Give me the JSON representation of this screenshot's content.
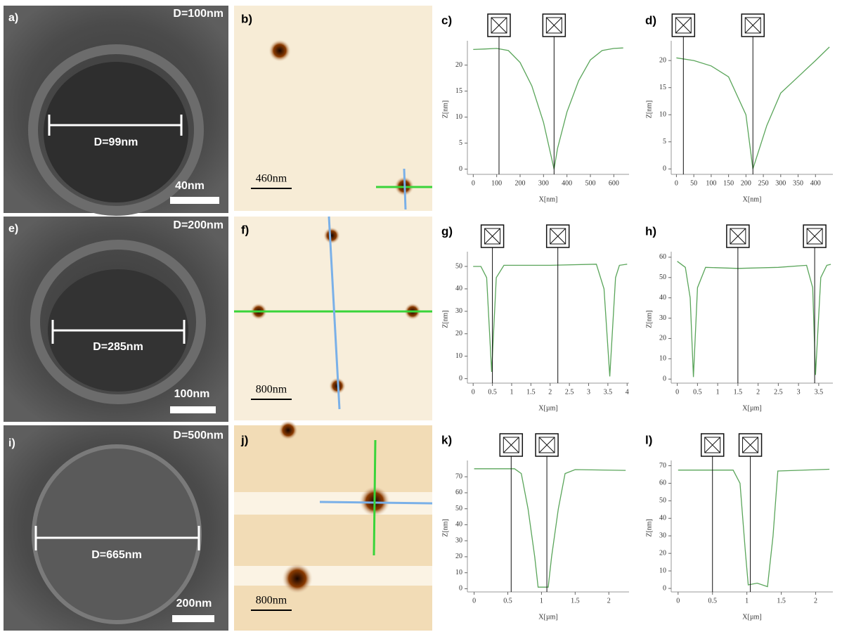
{
  "sem_panels": [
    {
      "label": "a)",
      "diameter": "D=100nm",
      "measured": "D=99nm",
      "scale": "40nm"
    },
    {
      "label": "e)",
      "diameter": "D=200nm",
      "measured": "D=285nm",
      "scale": "100nm"
    },
    {
      "label": "i)",
      "diameter": "D=500nm",
      "measured": "D=665nm",
      "scale": "200nm"
    }
  ],
  "afm_panels": [
    {
      "label": "b)",
      "scale": "460nm"
    },
    {
      "label": "f)",
      "scale": "800nm"
    },
    {
      "label": "j)",
      "scale": "800nm"
    }
  ],
  "chart_data": [
    {
      "type": "line",
      "label": "c)",
      "xlabel": "X[nm]",
      "ylabel": "Z[nm]",
      "x": [
        0,
        50,
        100,
        150,
        200,
        250,
        300,
        330,
        345,
        360,
        400,
        450,
        500,
        550,
        600,
        640
      ],
      "series": [
        {
          "color": "#5aa55a",
          "values": [
            23,
            23.1,
            23.2,
            22.8,
            20.5,
            16,
            9,
            3,
            0,
            4,
            11,
            17,
            21,
            22.8,
            23.2,
            23.3
          ]
        }
      ],
      "xlim": [
        -25,
        665
      ],
      "ylim": [
        -1,
        24
      ],
      "xticks": [
        0,
        100,
        200,
        300,
        400,
        500,
        600
      ],
      "yticks": [
        0,
        5,
        10,
        15,
        20
      ],
      "cursors": [
        110,
        345
      ]
    },
    {
      "type": "line",
      "label": "d)",
      "xlabel": "X[nm]",
      "ylabel": "Z[nm]",
      "x": [
        0,
        50,
        100,
        150,
        200,
        220,
        260,
        300,
        350,
        400,
        440
      ],
      "series": [
        {
          "color": "#5aa55a",
          "values": [
            20.5,
            20,
            19,
            17,
            10,
            0,
            8,
            14,
            17,
            20,
            22.5
          ]
        }
      ],
      "xlim": [
        -15,
        450
      ],
      "ylim": [
        -1,
        23
      ],
      "xticks": [
        0,
        50,
        100,
        150,
        200,
        250,
        300,
        350,
        400
      ],
      "yticks": [
        0,
        5,
        10,
        15,
        20
      ],
      "cursors": [
        20,
        220
      ]
    },
    {
      "type": "line",
      "label": "g)",
      "xlabel": "X[µm]",
      "ylabel": "Z[nm]",
      "x": [
        0,
        0.2,
        0.35,
        0.48,
        0.6,
        0.8,
        2,
        3.2,
        3.4,
        3.55,
        3.7,
        3.8,
        4
      ],
      "series": [
        {
          "color": "#5aa55a",
          "values": [
            50,
            50,
            45,
            3,
            45,
            50.5,
            50.5,
            51,
            40,
            1,
            45,
            50.5,
            51
          ]
        }
      ],
      "xlim": [
        -0.15,
        4.05
      ],
      "ylim": [
        -2,
        55
      ],
      "xticks": [
        0,
        0.5,
        1,
        1.5,
        2,
        2.5,
        3,
        3.5,
        4
      ],
      "yticks": [
        0,
        10,
        20,
        30,
        40,
        50
      ],
      "cursors": [
        0.5,
        2.2
      ]
    },
    {
      "type": "line",
      "label": "h)",
      "xlabel": "X[µm]",
      "ylabel": "Z[nm]",
      "x": [
        0,
        0.2,
        0.32,
        0.4,
        0.5,
        0.7,
        1.5,
        2.5,
        3.2,
        3.35,
        3.42,
        3.55,
        3.7,
        3.8
      ],
      "series": [
        {
          "color": "#5aa55a",
          "values": [
            58,
            55,
            40,
            1,
            45,
            55,
            54.5,
            55,
            56,
            45,
            2,
            50,
            56,
            56.5
          ]
        }
      ],
      "xlim": [
        -0.15,
        3.85
      ],
      "ylim": [
        -2,
        61
      ],
      "xticks": [
        0,
        0.5,
        1,
        1.5,
        2,
        2.5,
        3,
        3.5
      ],
      "yticks": [
        0,
        10,
        20,
        30,
        40,
        50,
        60
      ],
      "cursors": [
        1.5,
        3.4
      ]
    },
    {
      "type": "line",
      "label": "k)",
      "xlabel": "X[µm]",
      "ylabel": "Z[nm]",
      "x": [
        0,
        0.6,
        0.7,
        0.8,
        0.9,
        0.95,
        1.1,
        1.15,
        1.25,
        1.35,
        1.5,
        2.25
      ],
      "series": [
        {
          "color": "#5aa55a",
          "values": [
            75,
            75,
            72,
            50,
            20,
            1,
            1,
            20,
            50,
            72,
            74.5,
            74
          ]
        }
      ],
      "xlim": [
        -0.1,
        2.3
      ],
      "ylim": [
        -2,
        78
      ],
      "xticks": [
        0,
        0.5,
        1,
        1.5,
        2
      ],
      "yticks": [
        0,
        10,
        20,
        30,
        40,
        50,
        60,
        70
      ],
      "cursors": [
        0.55,
        1.08
      ]
    },
    {
      "type": "line",
      "label": "l)",
      "xlabel": "X[µm]",
      "ylabel": "Z[nm]",
      "x": [
        0,
        0.8,
        0.9,
        0.98,
        1.02,
        1.15,
        1.3,
        1.38,
        1.45,
        2.2
      ],
      "series": [
        {
          "color": "#5aa55a",
          "values": [
            67.5,
            67.5,
            60,
            20,
            2,
            3,
            1,
            30,
            67,
            68
          ]
        }
      ],
      "xlim": [
        -0.1,
        2.25
      ],
      "ylim": [
        -2,
        71
      ],
      "xticks": [
        0,
        0.5,
        1,
        1.5,
        2
      ],
      "yticks": [
        0,
        10,
        20,
        30,
        40,
        50,
        60,
        70
      ],
      "cursors": [
        0.5,
        1.05
      ]
    }
  ]
}
